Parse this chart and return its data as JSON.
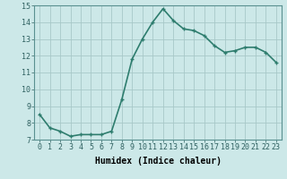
{
  "x": [
    0,
    1,
    2,
    3,
    4,
    5,
    6,
    7,
    8,
    9,
    10,
    11,
    12,
    13,
    14,
    15,
    16,
    17,
    18,
    19,
    20,
    21,
    22,
    23
  ],
  "y": [
    8.5,
    7.7,
    7.5,
    7.2,
    7.3,
    7.3,
    7.3,
    7.5,
    9.4,
    11.8,
    13.0,
    14.0,
    14.8,
    14.1,
    13.6,
    13.5,
    13.2,
    12.6,
    12.2,
    12.3,
    12.5,
    12.5,
    12.2,
    11.6
  ],
  "line_color": "#2e7d6e",
  "marker": "+",
  "marker_size": 3,
  "marker_linewidth": 1.0,
  "background_color": "#cce8e8",
  "grid_color": "#a8c8c8",
  "xlabel": "Humidex (Indice chaleur)",
  "xlabel_fontsize": 7,
  "xlabel_fontweight": "bold",
  "ylim": [
    7,
    15
  ],
  "xlim": [
    -0.5,
    23.5
  ],
  "yticks": [
    7,
    8,
    9,
    10,
    11,
    12,
    13,
    14,
    15
  ],
  "xtick_labels": [
    "0",
    "1",
    "2",
    "3",
    "4",
    "5",
    "6",
    "7",
    "8",
    "9",
    "10",
    "11",
    "12",
    "13",
    "14",
    "15",
    "16",
    "17",
    "18",
    "19",
    "20",
    "21",
    "22",
    "23"
  ],
  "tick_fontsize": 6,
  "linewidth": 1.2
}
